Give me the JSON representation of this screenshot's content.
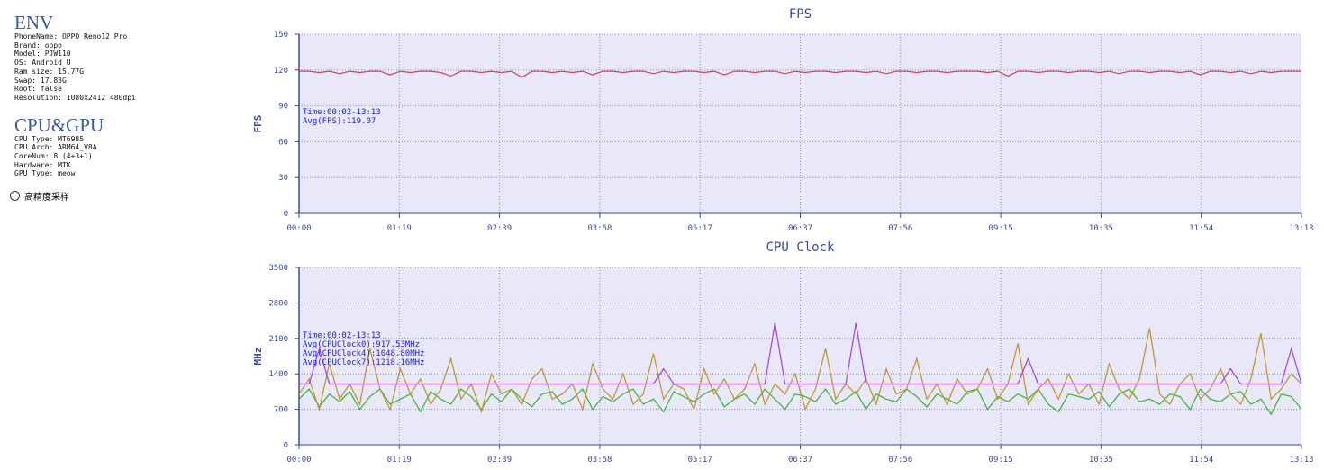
{
  "env": {
    "title": "ENV",
    "lines": [
      "PhoneName: OPPO Reno12 Pro",
      "Brand: oppo",
      "Model: PJW110",
      "OS: Android U",
      "Ram size: 15.77G",
      "Swap: 17.83G",
      "Root: false",
      "Resolution: 1080x2412 480dpi"
    ]
  },
  "cpugpu": {
    "title": "CPU&GPU",
    "lines": [
      "CPU Type: MT6985",
      "CPU Arch: ARM64_V8A",
      "CoreNum: 8 (4+3+1)",
      "Hardware: MTK",
      "GPU Type: meow"
    ]
  },
  "high_precision": {
    "label": "高精度采样",
    "checked": false
  },
  "chart_data": [
    {
      "type": "line",
      "title": "FPS",
      "ylabel": "FPS",
      "ylim": [
        0,
        150
      ],
      "yticks": [
        0,
        30,
        60,
        90,
        120,
        150
      ],
      "xticks": [
        "00:00",
        "01:19",
        "02:39",
        "03:58",
        "05:17",
        "06:37",
        "07:56",
        "09:15",
        "10:35",
        "11:54",
        "13:13"
      ],
      "grid": true,
      "annotations": [
        "Time:00:02-13:13",
        "Avg(FPS):119.07"
      ],
      "series": [
        {
          "name": "FPS",
          "color": "#d0405a",
          "values": [
            119,
            119,
            118,
            119,
            117,
            119,
            118,
            119,
            119,
            116,
            119,
            118,
            119,
            119,
            118,
            115,
            119,
            119,
            118,
            119,
            118,
            119,
            114,
            119,
            119,
            118,
            119,
            118,
            119,
            116,
            119,
            119,
            118,
            119,
            119,
            117,
            119,
            118,
            119,
            119,
            118,
            119,
            116,
            119,
            119,
            118,
            119,
            119,
            117,
            119,
            118,
            119,
            119,
            118,
            119,
            119,
            118,
            119,
            117,
            119,
            119,
            118,
            119,
            119,
            118,
            119,
            119,
            119,
            118,
            119,
            115,
            119,
            119,
            118,
            119,
            119,
            118,
            119,
            119,
            118,
            119,
            117,
            119,
            119,
            118,
            119,
            119,
            118,
            119,
            116,
            119,
            119,
            118,
            119,
            117,
            119,
            118,
            119,
            119,
            119
          ]
        }
      ]
    },
    {
      "type": "line",
      "title": "CPU Clock",
      "ylabel": "MHz",
      "ylim": [
        0,
        3500
      ],
      "yticks": [
        0,
        700,
        1400,
        2100,
        2800,
        3500
      ],
      "xticks": [
        "00:00",
        "01:19",
        "02:39",
        "03:58",
        "05:17",
        "06:37",
        "07:56",
        "09:15",
        "10:35",
        "11:54",
        "13:13"
      ],
      "grid": true,
      "annotations": [
        "Time:00:02-13:13",
        "Avg(CPUClock0):917.53MHz",
        "Avg(CPUClock4):1048.80MHz",
        "Avg(CPUClock7):1218.16MHz"
      ],
      "series": [
        {
          "name": "CPUClock0",
          "color": "#3cb030",
          "values": [
            900,
            1100,
            750,
            1000,
            850,
            1050,
            700,
            950,
            1100,
            800,
            900,
            1000,
            650,
            1050,
            900,
            800,
            1100,
            950,
            700,
            1000,
            850,
            1100,
            900,
            750,
            1000,
            1050,
            800,
            900,
            1100,
            700,
            950,
            850,
            1000,
            1100,
            800,
            900,
            650,
            1050,
            950,
            850,
            1000,
            1100,
            750,
            900,
            1000,
            800,
            1100,
            900,
            700,
            1000,
            950,
            850,
            1100,
            800,
            900,
            1050,
            700,
            1000,
            900,
            850,
            1100,
            950,
            750,
            1000,
            900,
            800,
            1050,
            1100,
            700,
            950,
            850,
            1000,
            900,
            1100,
            800,
            650,
            1000,
            950,
            900,
            1050,
            750,
            1000,
            1100,
            850,
            900,
            800,
            1000,
            950,
            700,
            1100,
            900,
            850,
            1000,
            1050,
            800,
            900,
            600,
            1000,
            950,
            700
          ]
        },
        {
          "name": "CPUClock4",
          "color": "#c09030",
          "values": [
            1000,
            1300,
            700,
            1600,
            900,
            1200,
            800,
            1900,
            1100,
            700,
            1500,
            1000,
            1300,
            800,
            1100,
            1700,
            900,
            1200,
            650,
            1400,
            1000,
            1100,
            800,
            1300,
            1500,
            900,
            1000,
            1200,
            700,
            1600,
            1100,
            900,
            1400,
            800,
            1000,
            1800,
            900,
            1200,
            1100,
            700,
            1500,
            1000,
            1300,
            900,
            1100,
            1600,
            800,
            1200,
            1000,
            1400,
            700,
            1100,
            1900,
            900,
            1200,
            1000,
            1300,
            800,
            1500,
            1000,
            1100,
            1700,
            900,
            1200,
            800,
            1300,
            1000,
            1100,
            1500,
            900,
            1200,
            2000,
            800,
            1100,
            1300,
            900,
            1400,
            1000,
            1200,
            800,
            1600,
            1100,
            900,
            1300,
            2300,
            1000,
            800,
            1200,
            1400,
            900,
            1100,
            1500,
            1000,
            800,
            1300,
            2200,
            900,
            1100,
            1400,
            1200
          ]
        },
        {
          "name": "CPUClock7",
          "color": "#a040e0",
          "values": [
            1200,
            1200,
            1900,
            1200,
            1200,
            1200,
            1200,
            1200,
            1200,
            1200,
            1200,
            1200,
            1200,
            1200,
            1200,
            1200,
            1200,
            1200,
            1200,
            1200,
            1200,
            1200,
            1200,
            1200,
            1200,
            1200,
            1200,
            1200,
            1200,
            1200,
            1200,
            1200,
            1200,
            1200,
            1200,
            1200,
            1500,
            1200,
            1200,
            1200,
            1200,
            1200,
            1200,
            1200,
            1200,
            1200,
            1200,
            2400,
            1200,
            1200,
            1200,
            1200,
            1200,
            1200,
            1200,
            2400,
            1200,
            1200,
            1200,
            1200,
            1200,
            1200,
            1200,
            1200,
            1200,
            1200,
            1200,
            1200,
            1200,
            1200,
            1200,
            1200,
            1700,
            1200,
            1200,
            1200,
            1200,
            1200,
            1200,
            1200,
            1200,
            1200,
            1200,
            1200,
            1200,
            1200,
            1200,
            1200,
            1200,
            1200,
            1200,
            1200,
            1500,
            1200,
            1200,
            1200,
            1200,
            1200,
            1900,
            1200
          ]
        }
      ]
    }
  ]
}
